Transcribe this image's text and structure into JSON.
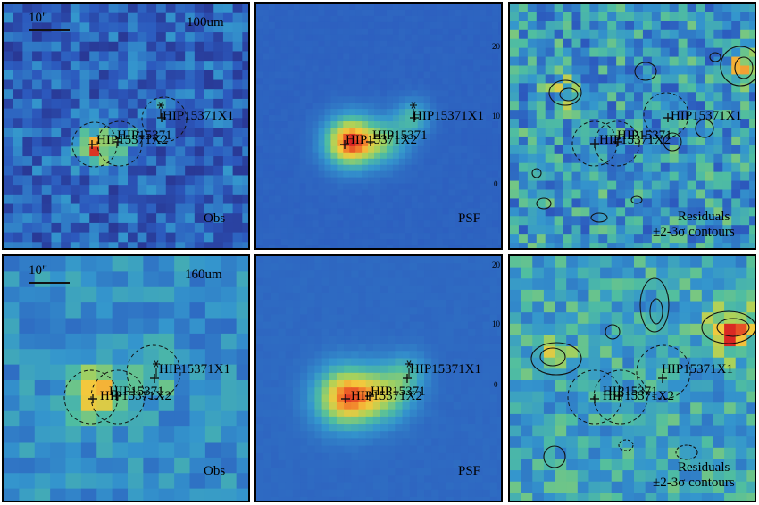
{
  "panels": {
    "top_obs": {
      "band": "100um",
      "scale_bar": "10\"",
      "corner_label": "Obs"
    },
    "top_psf": {
      "corner_label": "PSF"
    },
    "top_res": {
      "line1": "Residuals",
      "line2": "±2-3σ contours"
    },
    "bot_obs": {
      "band": "160um",
      "scale_bar": "10\"",
      "corner_label": "Obs"
    },
    "bot_psf": {
      "corner_label": "PSF"
    },
    "bot_res": {
      "line1": "Residuals",
      "line2": "±2-3σ contours"
    }
  },
  "sources": {
    "x1": "HIP15371X1",
    "primary": "HIP15371",
    "x2": "HIP15371X2"
  },
  "tick_labels": {
    "top_psf_right": [
      "20",
      "10",
      "0"
    ],
    "bot_psf_right": [
      "20",
      "10",
      "0"
    ]
  }
}
